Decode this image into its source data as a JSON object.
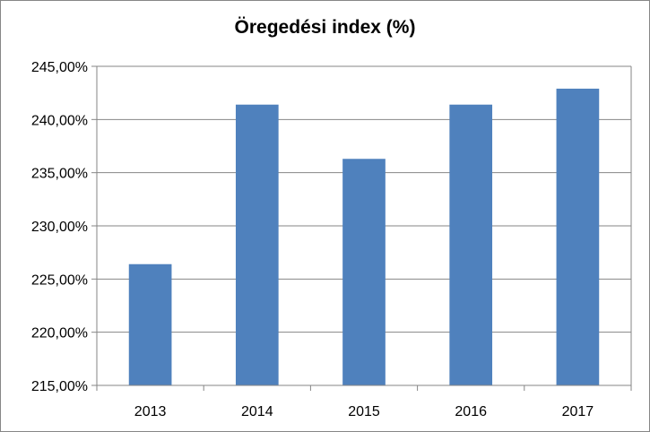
{
  "chart_data": {
    "type": "bar",
    "title": "Öregedési index (%)",
    "xlabel": "",
    "ylabel": "",
    "categories": [
      "2013",
      "2014",
      "2015",
      "2016",
      "2017"
    ],
    "values": [
      226.4,
      241.4,
      236.3,
      241.4,
      242.9
    ],
    "ylim": [
      215,
      245
    ],
    "yticks": [
      215,
      220,
      225,
      230,
      235,
      240,
      245
    ],
    "ytick_labels": [
      "215,00%",
      "220,00%",
      "225,00%",
      "230,00%",
      "235,00%",
      "240,00%",
      "245,00%"
    ],
    "grid": true,
    "legend": "none",
    "bar_color": "#4F81BD",
    "grid_color": "#868686"
  }
}
